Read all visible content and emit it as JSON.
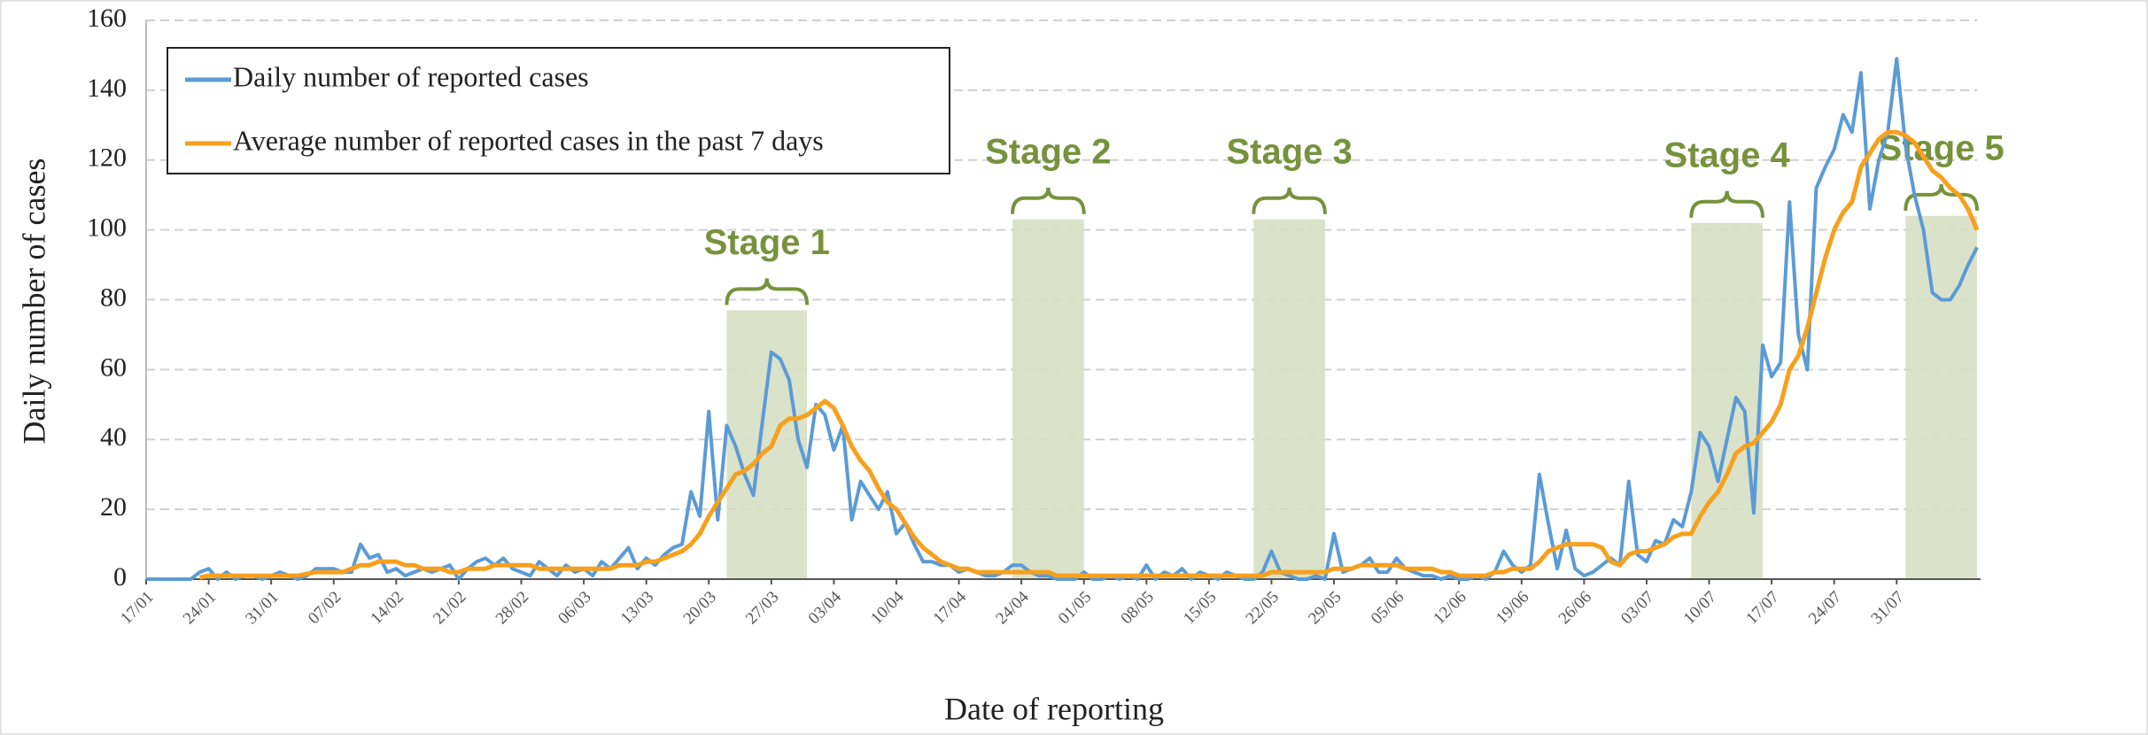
{
  "chart_data": {
    "type": "line",
    "y_label": "Daily  number of cases",
    "x_label": "Date of reporting",
    "categories": [
      "17/01",
      null,
      null,
      null,
      null,
      null,
      null,
      "24/01",
      null,
      null,
      null,
      null,
      null,
      null,
      "31/01",
      null,
      null,
      null,
      null,
      null,
      null,
      "07/02",
      null,
      null,
      null,
      null,
      null,
      null,
      "14/02",
      null,
      null,
      null,
      null,
      null,
      null,
      "21/02",
      null,
      null,
      null,
      null,
      null,
      null,
      "28/02",
      null,
      null,
      null,
      null,
      null,
      null,
      "06/03",
      null,
      null,
      null,
      null,
      null,
      null,
      "13/03",
      null,
      null,
      null,
      null,
      null,
      null,
      "20/03",
      null,
      null,
      null,
      null,
      null,
      null,
      "27/03",
      null,
      null,
      null,
      null,
      null,
      null,
      "03/04",
      null,
      null,
      null,
      null,
      null,
      null,
      "10/04",
      null,
      null,
      null,
      null,
      null,
      null,
      "17/04",
      null,
      null,
      null,
      null,
      null,
      null,
      "24/04",
      null,
      null,
      null,
      null,
      null,
      null,
      "01/05",
      null,
      null,
      null,
      null,
      null,
      null,
      "08/05",
      null,
      null,
      null,
      null,
      null,
      null,
      "15/05",
      null,
      null,
      null,
      null,
      null,
      null,
      "22/05",
      null,
      null,
      null,
      null,
      null,
      null,
      "29/05",
      null,
      null,
      null,
      null,
      null,
      null,
      "05/06",
      null,
      null,
      null,
      null,
      null,
      null,
      "12/06",
      null,
      null,
      null,
      null,
      null,
      null,
      "19/06",
      null,
      null,
      null,
      null,
      null,
      null,
      "26/06",
      null,
      null,
      null,
      null,
      null,
      null,
      "03/07",
      null,
      null,
      null,
      null,
      null,
      null,
      "10/07",
      null,
      null,
      null,
      null,
      null,
      null,
      "17/07",
      null,
      null,
      null,
      null,
      null,
      null,
      "24/07",
      null,
      null,
      null,
      null,
      null,
      null,
      "31/07",
      null,
      null,
      null,
      null,
      null,
      null,
      null,
      null,
      null
    ],
    "series": [
      {
        "name": "Daily number of reported cases",
        "color": "#5b9bd5",
        "values": [
          0,
          0,
          0,
          0,
          0,
          0,
          2,
          3,
          0,
          2,
          0,
          1,
          1,
          0,
          1,
          2,
          1,
          0,
          1,
          3,
          3,
          3,
          2,
          2,
          10,
          6,
          7,
          2,
          3,
          1,
          2,
          3,
          2,
          3,
          4,
          0,
          3,
          5,
          6,
          4,
          6,
          3,
          2,
          1,
          5,
          3,
          1,
          4,
          2,
          3,
          1,
          5,
          3,
          6,
          9,
          3,
          6,
          4,
          7,
          9,
          10,
          25,
          18,
          48,
          17,
          44,
          38,
          30,
          24,
          45,
          65,
          63,
          57,
          40,
          32,
          50,
          47,
          37,
          44,
          17,
          28,
          24,
          20,
          25,
          13,
          16,
          10,
          5,
          5,
          4,
          4,
          2,
          3,
          2,
          1,
          1,
          2,
          4,
          4,
          2,
          1,
          1,
          0,
          0,
          0,
          2,
          0,
          0,
          1,
          0,
          1,
          0,
          4,
          0,
          2,
          1,
          3,
          0,
          2,
          1,
          0,
          2,
          1,
          0,
          0,
          2,
          8,
          2,
          1,
          0,
          0,
          1,
          0,
          13,
          2,
          3,
          4,
          6,
          2,
          2,
          6,
          3,
          2,
          1,
          1,
          0,
          1,
          0,
          0,
          1,
          0,
          2,
          8,
          4,
          2,
          4,
          30,
          16,
          3,
          14,
          3,
          1,
          2,
          4,
          6,
          4,
          28,
          7,
          5,
          11,
          10,
          17,
          15,
          25,
          42,
          38,
          28,
          40,
          52,
          48,
          19,
          67,
          58,
          62,
          108,
          70,
          60,
          112,
          118,
          123,
          133,
          128,
          145,
          106,
          120,
          128,
          149,
          124,
          110,
          100,
          82,
          80,
          80,
          84,
          90,
          95
        ]
      },
      {
        "name": "Average number of reported cases in the past 7 days",
        "color": "#f7a01d",
        "values": [
          null,
          null,
          null,
          null,
          null,
          null,
          0.5,
          1,
          1,
          1,
          1,
          1,
          1,
          1,
          1,
          1,
          1,
          1,
          1.5,
          2,
          2,
          2,
          2,
          3,
          4,
          4,
          5,
          5,
          5,
          4,
          4,
          3,
          3,
          3,
          2,
          2,
          3,
          3,
          3,
          4,
          4,
          4,
          4,
          4,
          3,
          3,
          3,
          3,
          3,
          3,
          3,
          3,
          3,
          4,
          4,
          4,
          5,
          5,
          6,
          7,
          8,
          10,
          13,
          18,
          22,
          26,
          30,
          31,
          33,
          36,
          38,
          44,
          46,
          46,
          47,
          49,
          51,
          49,
          44,
          38,
          34,
          31,
          26,
          22,
          20,
          16,
          12,
          9,
          7,
          5,
          4,
          3,
          3,
          2,
          2,
          2,
          2,
          2,
          2,
          2,
          2,
          2,
          1,
          1,
          1,
          1,
          1,
          1,
          1,
          1,
          1,
          1,
          1,
          1,
          1,
          1,
          1,
          1,
          1,
          1,
          1,
          1,
          1,
          1,
          1,
          1,
          2,
          2,
          2,
          2,
          2,
          2,
          2,
          3,
          3,
          3,
          4,
          4,
          4,
          4,
          4,
          3,
          3,
          3,
          3,
          2,
          2,
          1,
          1,
          1,
          1,
          2,
          2,
          3,
          3,
          3,
          5,
          8,
          9,
          10,
          10,
          10,
          10,
          9,
          5,
          4,
          7,
          8,
          8,
          9,
          10,
          12,
          13,
          13,
          18,
          22,
          25,
          30,
          36,
          38,
          39,
          42,
          45,
          50,
          60,
          64,
          72,
          82,
          92,
          100,
          105,
          108,
          118,
          122,
          126,
          128,
          128,
          127,
          125,
          121,
          117,
          115,
          112,
          110,
          106,
          100
        ]
      }
    ],
    "stages": [
      {
        "label": "Stage 1",
        "start": 65,
        "end": 74,
        "top": 77
      },
      {
        "label": "Stage 2",
        "start": 97,
        "end": 105,
        "top": 103
      },
      {
        "label": "Stage 3",
        "start": 124,
        "end": 132,
        "top": 103
      },
      {
        "label": "Stage 4",
        "start": 173,
        "end": 181,
        "top": 102
      },
      {
        "label": "Stage 5",
        "start": 197,
        "end": 205,
        "top": 104
      }
    ],
    "stage_color": "#d6dfc4",
    "ylim": [
      0,
      160
    ],
    "yticks": [
      0,
      20,
      40,
      60,
      80,
      100,
      120,
      140,
      160
    ],
    "grid": true,
    "legend": "upper left"
  }
}
